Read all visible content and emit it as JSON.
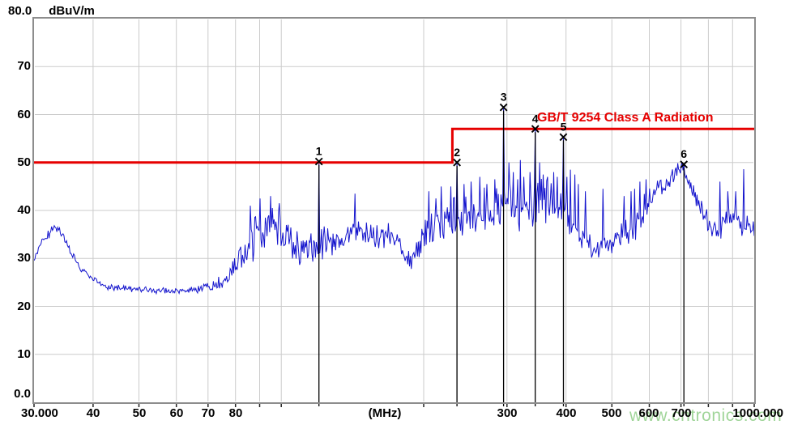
{
  "header": {
    "scale_top": "80.0",
    "unit": "dBuV/m"
  },
  "watermark": "www.cntronics.com",
  "chart_data": {
    "type": "line",
    "x_axis": {
      "scale": "log",
      "min": 30,
      "max": 1000,
      "unit_label": "(MHz)",
      "tick_labels": [
        {
          "f": 30,
          "text": "30.000"
        },
        {
          "f": 40,
          "text": "40"
        },
        {
          "f": 50,
          "text": "50"
        },
        {
          "f": 60,
          "text": "60"
        },
        {
          "f": 70,
          "text": "70"
        },
        {
          "f": 80,
          "text": "80"
        },
        {
          "f": 300,
          "text": "300"
        },
        {
          "f": 400,
          "text": "400"
        },
        {
          "f": 500,
          "text": "500"
        },
        {
          "f": 600,
          "text": "600"
        },
        {
          "f": 700,
          "text": "700"
        },
        {
          "f": 1000,
          "text": "1000.000"
        }
      ],
      "gridlines": [
        40,
        50,
        60,
        70,
        80,
        90,
        100,
        200,
        300,
        400,
        500,
        600,
        700,
        800,
        900
      ]
    },
    "y_axis": {
      "min": 0,
      "max": 80,
      "top_label": "80.0",
      "tick_labels": [
        {
          "db": 70,
          "text": "70"
        },
        {
          "db": 60,
          "text": "60"
        },
        {
          "db": 50,
          "text": "50"
        },
        {
          "db": 40,
          "text": "40"
        },
        {
          "db": 30,
          "text": "30"
        },
        {
          "db": 20,
          "text": "20"
        },
        {
          "db": 10,
          "text": "10"
        },
        {
          "db": 0,
          "text": "0.0"
        }
      ],
      "gridlines": [
        10,
        20,
        30,
        40,
        50,
        60,
        70
      ]
    },
    "limit_line": {
      "label": "GB/T 9254 Class A Radiation",
      "color": "#e60000",
      "step_freq_mhz": 230,
      "segments": [
        {
          "f_start": 30,
          "f_end": 230,
          "level_db": 50
        },
        {
          "f_start": 230,
          "f_end": 1000,
          "level_db": 57
        }
      ]
    },
    "markers": [
      {
        "label": "1",
        "freq_mhz": 120,
        "level_db": 50.2
      },
      {
        "label": "2",
        "freq_mhz": 235,
        "level_db": 50.0
      },
      {
        "label": "3",
        "freq_mhz": 295,
        "level_db": 61.5
      },
      {
        "label": "4",
        "freq_mhz": 345,
        "level_db": 57.0
      },
      {
        "label": "5",
        "freq_mhz": 395,
        "level_db": 55.3
      },
      {
        "label": "6",
        "freq_mhz": 710,
        "level_db": 49.6
      }
    ],
    "trace": {
      "color": "#1414cd",
      "noise_seed": 9,
      "points": 820,
      "envelope": [
        [
          30,
          29.5,
          0.7
        ],
        [
          31,
          33,
          1
        ],
        [
          33,
          36.5,
          0.8
        ],
        [
          34,
          35.5,
          0.8
        ],
        [
          36,
          31,
          0.8
        ],
        [
          38,
          27.5,
          0.6
        ],
        [
          40,
          25.5,
          0.5
        ],
        [
          43,
          24,
          0.5
        ],
        [
          47,
          23.7,
          0.5
        ],
        [
          52,
          23.4,
          0.5
        ],
        [
          58,
          23.2,
          0.5
        ],
        [
          63,
          23.3,
          0.5
        ],
        [
          68,
          23.6,
          0.7
        ],
        [
          72,
          24.2,
          0.9
        ],
        [
          76,
          25.5,
          1.3
        ],
        [
          80,
          28,
          2.2
        ],
        [
          84,
          31.5,
          3
        ],
        [
          88,
          34.5,
          3.6
        ],
        [
          92,
          36.5,
          3.8
        ],
        [
          96,
          37,
          3.6
        ],
        [
          100,
          35.5,
          3
        ],
        [
          104,
          33,
          2.8
        ],
        [
          109,
          32,
          2.6
        ],
        [
          114,
          32.5,
          2.6
        ],
        [
          120,
          33,
          2.6
        ],
        [
          126,
          33.5,
          2.6
        ],
        [
          133,
          34.5,
          2.6
        ],
        [
          140,
          36,
          2.4
        ],
        [
          147,
          36,
          2.2
        ],
        [
          155,
          35,
          2
        ],
        [
          163,
          34.5,
          1.9
        ],
        [
          170,
          35,
          1.9
        ],
        [
          177,
          33.5,
          1.8
        ],
        [
          183,
          30.5,
          1.6
        ],
        [
          188,
          29.5,
          1.6
        ],
        [
          194,
          31.5,
          2.2
        ],
        [
          200,
          34,
          3
        ],
        [
          208,
          35.5,
          3.4
        ],
        [
          216,
          36.5,
          3.5
        ],
        [
          224,
          37.5,
          3.5
        ],
        [
          232,
          38,
          3.6
        ],
        [
          240,
          38.5,
          3.6
        ],
        [
          250,
          39,
          3.8
        ],
        [
          260,
          40,
          4
        ],
        [
          270,
          39.5,
          4
        ],
        [
          280,
          40,
          4
        ],
        [
          290,
          40.5,
          4
        ],
        [
          300,
          41,
          4
        ],
        [
          310,
          40.5,
          4
        ],
        [
          320,
          40,
          4
        ],
        [
          330,
          41,
          4
        ],
        [
          340,
          41.5,
          4
        ],
        [
          350,
          42,
          4
        ],
        [
          360,
          41,
          3.8
        ],
        [
          370,
          41.5,
          3.8
        ],
        [
          380,
          41,
          3.6
        ],
        [
          390,
          40.5,
          3.5
        ],
        [
          400,
          39,
          3.1
        ],
        [
          410,
          37.5,
          2.9
        ],
        [
          420,
          36.5,
          2.6
        ],
        [
          435,
          34.5,
          2.2
        ],
        [
          450,
          32.5,
          1.8
        ],
        [
          465,
          31.8,
          1.6
        ],
        [
          480,
          32.3,
          1.8
        ],
        [
          495,
          33,
          2
        ],
        [
          510,
          33.8,
          2
        ],
        [
          525,
          34.5,
          2.2
        ],
        [
          540,
          35.5,
          2.2
        ],
        [
          555,
          36.5,
          2.4
        ],
        [
          570,
          38,
          2.6
        ],
        [
          585,
          40,
          2.6
        ],
        [
          600,
          42,
          2.4
        ],
        [
          615,
          44,
          2.2
        ],
        [
          630,
          45.8,
          1.9
        ],
        [
          645,
          45,
          1.7
        ],
        [
          660,
          46,
          1.6
        ],
        [
          675,
          47.5,
          1.4
        ],
        [
          690,
          48.8,
          1.2
        ],
        [
          705,
          49,
          1.1
        ],
        [
          715,
          47.5,
          1.2
        ],
        [
          730,
          45.5,
          1.4
        ],
        [
          745,
          43.5,
          1.4
        ],
        [
          760,
          42,
          1.4
        ],
        [
          775,
          40.5,
          1.5
        ],
        [
          790,
          38.5,
          1.7
        ],
        [
          805,
          37,
          1.9
        ],
        [
          820,
          36.3,
          2
        ],
        [
          840,
          36.5,
          2.2
        ],
        [
          860,
          37.5,
          2.2
        ],
        [
          880,
          38,
          2.3
        ],
        [
          900,
          38.2,
          2.4
        ],
        [
          920,
          38.5,
          2.4
        ],
        [
          940,
          37.5,
          2.2
        ],
        [
          960,
          37,
          2
        ],
        [
          980,
          36.3,
          1.7
        ],
        [
          1000,
          35.8,
          1.3
        ]
      ],
      "spikes": [
        [
          86,
          41
        ],
        [
          90,
          42.5
        ],
        [
          95,
          43
        ],
        [
          99,
          41.5
        ],
        [
          120,
          50.2
        ],
        [
          143,
          43.5
        ],
        [
          205,
          44
        ],
        [
          212,
          42.5
        ],
        [
          218,
          45
        ],
        [
          228,
          45
        ],
        [
          235,
          50
        ],
        [
          243,
          45.5
        ],
        [
          252,
          46
        ],
        [
          263,
          47
        ],
        [
          272,
          45.5
        ],
        [
          283,
          46.5
        ],
        [
          295,
          61.5
        ],
        [
          303,
          50
        ],
        [
          309,
          48
        ],
        [
          316,
          46.5
        ],
        [
          320,
          50.5
        ],
        [
          326,
          47
        ],
        [
          336,
          48
        ],
        [
          345,
          57
        ],
        [
          352,
          50
        ],
        [
          358,
          47.5
        ],
        [
          365,
          47
        ],
        [
          376,
          48
        ],
        [
          383,
          47
        ],
        [
          395,
          55.3
        ],
        [
          401,
          47
        ],
        [
          408,
          48.5
        ],
        [
          418,
          47.5
        ],
        [
          425,
          45.5
        ],
        [
          440,
          44
        ],
        [
          478,
          44.5
        ],
        [
          530,
          43
        ],
        [
          548,
          44
        ],
        [
          558,
          44.5
        ],
        [
          572,
          46
        ],
        [
          590,
          46.5
        ],
        [
          710,
          49.6
        ],
        [
          845,
          46
        ],
        [
          880,
          44
        ],
        [
          915,
          44
        ],
        [
          948,
          48.6
        ]
      ]
    },
    "colors": {
      "grid": "#cbcbcb",
      "border": "#8d8d8d",
      "marker": "#000000"
    }
  }
}
